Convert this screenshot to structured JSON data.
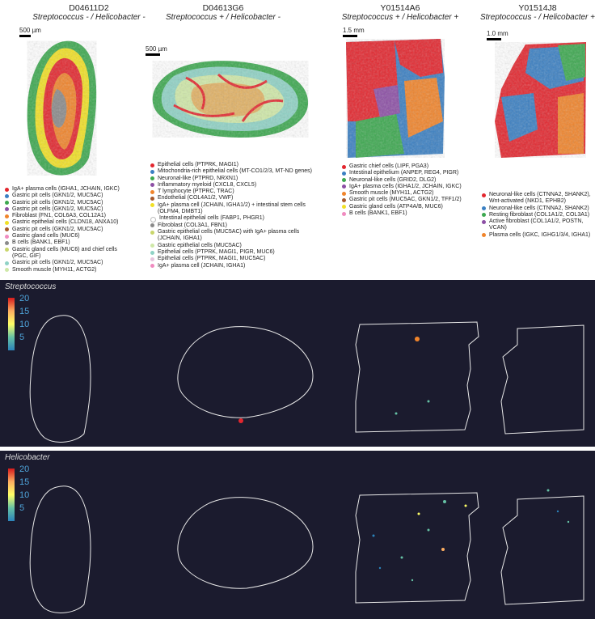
{
  "samples": [
    {
      "id": "D04611D2",
      "condition": "Streptococcus - / Helicobacter -",
      "scale": "500 µm"
    },
    {
      "id": "D04613G6",
      "condition": "Streptococcus + / Helicobacter -",
      "scale": "500 µm"
    },
    {
      "id": "Y01514A6",
      "condition": "Streptococcus + / Helicobacter +",
      "scale": "1.5 mm"
    },
    {
      "id": "Y01514J8",
      "condition": "Streptococcus - / Helicobacter +",
      "scale": "1.0 mm"
    }
  ],
  "legends": [
    [
      {
        "label": "IgA+ plasma cells (IGHA1, JCHAIN, IGKC)",
        "color": "#e3262e"
      },
      {
        "label": "Gastric pit cells (GKN1/2, MUC5AC)",
        "color": "#3a7fc2"
      },
      {
        "label": "Gastric pit cells (GKN1/2, MUC5AC)",
        "color": "#3ca84f"
      },
      {
        "label": "Gastric pit cells (GKN1/2, MUC5AC)",
        "color": "#8c4fa5"
      },
      {
        "label": "Fibroblast (FN1, COL6A3, COL12A1)",
        "color": "#f0842b"
      },
      {
        "label": "Gastric epithelial cells (CLDN18, ANXA10)",
        "color": "#f1e025"
      },
      {
        "label": "Gastric pit cells (GKN1/2, MUC5AC)",
        "color": "#a6582c"
      },
      {
        "label": "Gastric gland cells (MUC6)",
        "color": "#f08bc0"
      },
      {
        "label": "B cells (BANK1, EBF1)",
        "color": "#8a8a8a"
      },
      {
        "label": "Gastric gland cells (MUC6) and chief cells (PGC, GIF)",
        "color": "#c9d66b"
      },
      {
        "label": "Gastric pit cells (GKN1/2, MUC5AC)",
        "color": "#8fd2c5"
      },
      {
        "label": "Smooth muscle (MYH11, ACTG2)",
        "color": "#cfe8a8"
      }
    ],
    [
      {
        "label": "Epithelial cells (PTPRK, MAGI1)",
        "color": "#e3262e"
      },
      {
        "label": "Mitochondria-rich epithelial cells (MT-CO1/2/3, MT-ND genes)",
        "color": "#3a7fc2"
      },
      {
        "label": "Neuronal-like (PTPRD, NRXN1)",
        "color": "#3ca84f"
      },
      {
        "label": "Inflammatory myeloid (CXCL8, CXCL5)",
        "color": "#8c4fa5"
      },
      {
        "label": "T lymphocyte (PTPRC, TRAC)",
        "color": "#f0842b"
      },
      {
        "label": "Endothelial (COL4A1/2, VWF)",
        "color": "#a6582c"
      },
      {
        "label": "IgA+ plasma cell (JCHAIN, IGHA1/2) + intestinal stem cells (OLFM4, DMBT1)",
        "color": "#f1e025"
      },
      {
        "label": "Intestinal epithelial cells (FABP1, PHGR1)",
        "color": "#ffffff"
      },
      {
        "label": "Fibroblast (COL3A1, FBN1)",
        "color": "#8a8a8a"
      },
      {
        "label": "Gastric epithelial cells (MUC5AC) with IgA+ plasma cells (JCHAIN, IGHA1)",
        "color": "#c9d66b"
      },
      {
        "label": "Gastric epithelial cells (MUC5AC)",
        "color": "#cfe8a8"
      },
      {
        "label": "Epithelial cells (PTPRK, MAGI1, PIGR, MUC6)",
        "color": "#8fd2c5"
      },
      {
        "label": "Epithelial cells (PTPRK, MAGI1, MUC5AC)",
        "color": "#e6c4dd"
      },
      {
        "label": "IgA+ plasma cell (JCHAIN, IGHA1)",
        "color": "#f08bc0"
      }
    ],
    [
      {
        "label": "Gastric chief cells (LIPF, PGA3)",
        "color": "#e3262e"
      },
      {
        "label": "Intestinal epithelium (ANPEP, REG4, PIGR)",
        "color": "#3a7fc2"
      },
      {
        "label": "Neuronal-like cells (GRID2, DLG2)",
        "color": "#3ca84f"
      },
      {
        "label": "IgA+ plasma cells (IGHA1/2, JCHAIN, IGKC)",
        "color": "#8c4fa5"
      },
      {
        "label": "Smooth muscle (MYH11, ACTG2)",
        "color": "#f0842b"
      },
      {
        "label": "Gastric pit cells (MUC5AC, GKN1/2, TFF1/2)",
        "color": "#a6582c"
      },
      {
        "label": "Gastric gland cells (ATP4A/B, MUC6)",
        "color": "#f1e025"
      },
      {
        "label": "B cells (BANK1, EBF1)",
        "color": "#f08bc0"
      }
    ],
    [
      {
        "label": "Neuronal-like cells (CTNNA2, SHANK2), Wnt-activated (NKD1, EPHB2)",
        "color": "#e3262e"
      },
      {
        "label": "Neuronal-like cells (CTNNA2, SHANK2)",
        "color": "#3a7fc2"
      },
      {
        "label": "Resting fibroblast (COL1A1/2, COL3A1)",
        "color": "#3ca84f"
      },
      {
        "label": "Active fibroblast (COL1A1/2, POSTN, VCAN)",
        "color": "#8c4fa5"
      },
      {
        "label": "Plasma cells (IGKC, IGHG1/3/4, IGHA1)",
        "color": "#f0842b"
      }
    ]
  ],
  "panels": [
    {
      "title": "Streptococcus",
      "ticks": [
        "20",
        "15",
        "10",
        "5"
      ]
    },
    {
      "title": "Helicobacter",
      "ticks": [
        "20",
        "15",
        "10",
        "5"
      ]
    }
  ],
  "colors": {
    "panel_bg": "#1b1b2e",
    "outline": "#e8e8e8",
    "tick": "#4ea3d9"
  }
}
